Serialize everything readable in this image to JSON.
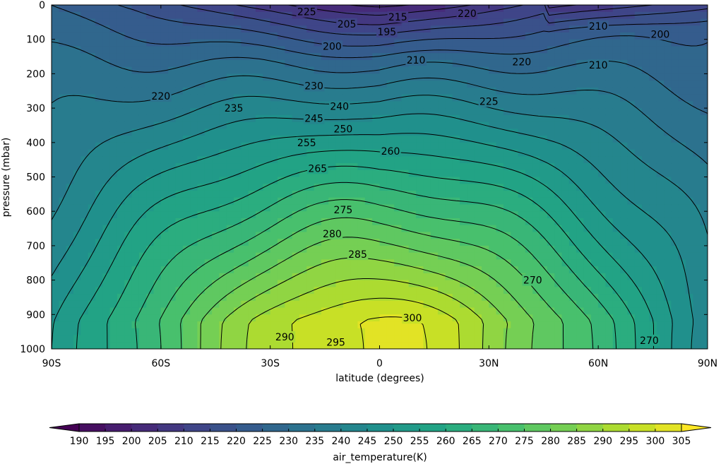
{
  "chart_data": {
    "type": "filled-contour",
    "xlabel": "latitude (degrees)",
    "ylabel": "pressure (mbar)",
    "xlim": [
      -90,
      90
    ],
    "ylim": [
      1000,
      0
    ],
    "y_inverted": true,
    "x_ticks": [
      {
        "value": -90,
        "label": "90S"
      },
      {
        "value": -60,
        "label": "60S"
      },
      {
        "value": -30,
        "label": "30S"
      },
      {
        "value": 0,
        "label": "0"
      },
      {
        "value": 30,
        "label": "30N"
      },
      {
        "value": 60,
        "label": "60N"
      },
      {
        "value": 90,
        "label": "90N"
      }
    ],
    "y_ticks": [
      0,
      100,
      200,
      300,
      400,
      500,
      600,
      700,
      800,
      900,
      1000
    ],
    "colorbar": {
      "label": "air_temperature(K)",
      "orientation": "horizontal",
      "extend": "both",
      "colormap": "viridis",
      "levels": [
        190,
        195,
        200,
        205,
        210,
        215,
        220,
        225,
        230,
        235,
        240,
        245,
        250,
        255,
        260,
        265,
        270,
        275,
        280,
        285,
        290,
        295,
        300,
        305
      ]
    },
    "contour_levels": [
      195,
      200,
      205,
      210,
      215,
      220,
      225,
      230,
      235,
      240,
      245,
      250,
      255,
      260,
      265,
      270,
      275,
      280,
      285,
      290,
      295,
      300
    ],
    "contour_labels": [
      {
        "text": "225",
        "lat": -20,
        "p": 20
      },
      {
        "text": "215",
        "lat": 5,
        "p": 35
      },
      {
        "text": "220",
        "lat": 24,
        "p": 25
      },
      {
        "text": "205",
        "lat": -9,
        "p": 55
      },
      {
        "text": "195",
        "lat": 2,
        "p": 78
      },
      {
        "text": "200",
        "lat": -13,
        "p": 120
      },
      {
        "text": "210",
        "lat": 10,
        "p": 160
      },
      {
        "text": "210",
        "lat": 60,
        "p": 62
      },
      {
        "text": "200",
        "lat": 77,
        "p": 85
      },
      {
        "text": "220",
        "lat": 39,
        "p": 165
      },
      {
        "text": "210",
        "lat": 60,
        "p": 175
      },
      {
        "text": "220",
        "lat": -60,
        "p": 265
      },
      {
        "text": "230",
        "lat": -18,
        "p": 235
      },
      {
        "text": "235",
        "lat": -40,
        "p": 300
      },
      {
        "text": "225",
        "lat": 30,
        "p": 280
      },
      {
        "text": "240",
        "lat": -11,
        "p": 295
      },
      {
        "text": "245",
        "lat": -18,
        "p": 330
      },
      {
        "text": "250",
        "lat": -10,
        "p": 360
      },
      {
        "text": "255",
        "lat": -20,
        "p": 400
      },
      {
        "text": "260",
        "lat": 3,
        "p": 425
      },
      {
        "text": "265",
        "lat": -17,
        "p": 475
      },
      {
        "text": "275",
        "lat": -10,
        "p": 595
      },
      {
        "text": "280",
        "lat": -13,
        "p": 665
      },
      {
        "text": "285",
        "lat": -6,
        "p": 725
      },
      {
        "text": "270",
        "lat": 42,
        "p": 800
      },
      {
        "text": "300",
        "lat": 9,
        "p": 910
      },
      {
        "text": "290",
        "lat": -26,
        "p": 965
      },
      {
        "text": "295",
        "lat": -12,
        "p": 980
      },
      {
        "text": "270",
        "lat": 74,
        "p": 975
      }
    ]
  }
}
